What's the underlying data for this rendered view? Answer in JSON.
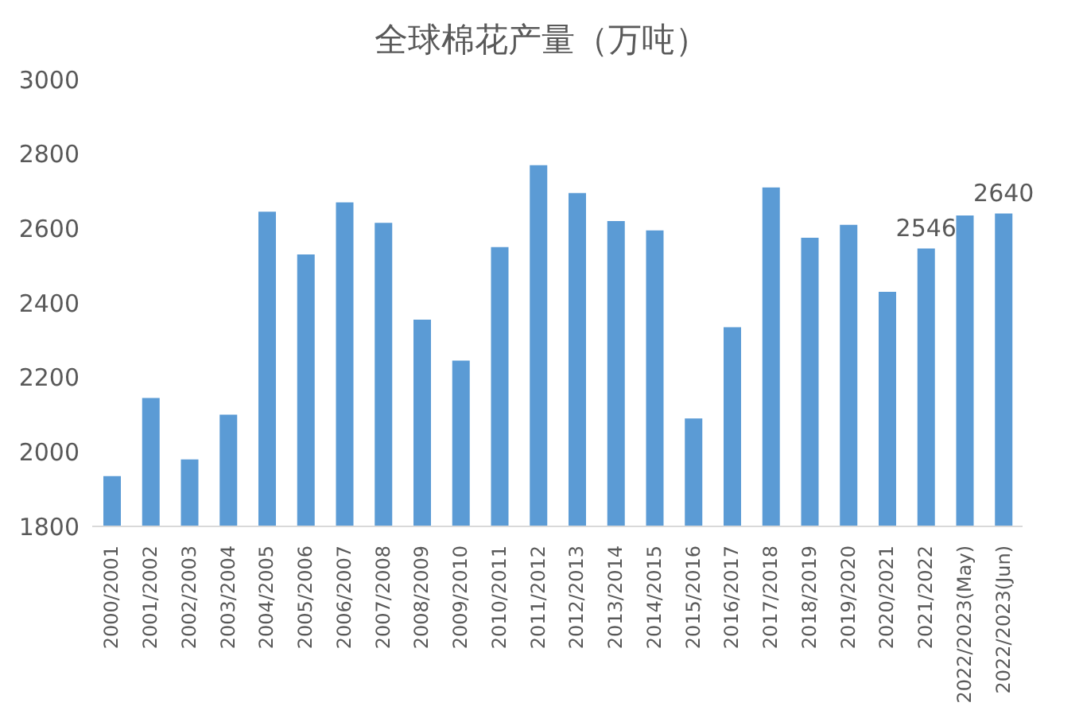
{
  "chart_data": {
    "type": "bar",
    "title": "全球棉花产量（万吨）",
    "categories": [
      "2000/2001",
      "2001/2002",
      "2002/2003",
      "2003/2004",
      "2004/2005",
      "2005/2006",
      "2006/2007",
      "2007/2008",
      "2008/2009",
      "2009/2010",
      "2010/2011",
      "2011/2012",
      "2012/2013",
      "2013/2014",
      "2014/2015",
      "2015/2016",
      "2016/2017",
      "2017/2018",
      "2018/2019",
      "2019/2020",
      "2020/2021",
      "2021/2022",
      "2022/2023(May)",
      "2022/2023(Jun)"
    ],
    "values": [
      1935,
      2145,
      1980,
      2100,
      2645,
      2530,
      2670,
      2615,
      2355,
      2245,
      2550,
      2770,
      2695,
      2620,
      2595,
      2090,
      2335,
      2710,
      2575,
      2610,
      2430,
      2546,
      2635,
      2640
    ],
    "value_labels": [
      null,
      null,
      null,
      null,
      null,
      null,
      null,
      null,
      null,
      null,
      null,
      null,
      null,
      null,
      null,
      null,
      null,
      null,
      null,
      null,
      null,
      "2546",
      null,
      "2640"
    ],
    "color": "#5b9bd5",
    "ylim": [
      1800,
      3000
    ],
    "yticks": [
      1800,
      2000,
      2200,
      2400,
      2600,
      2800,
      3000
    ],
    "grid": false,
    "legend": false
  }
}
